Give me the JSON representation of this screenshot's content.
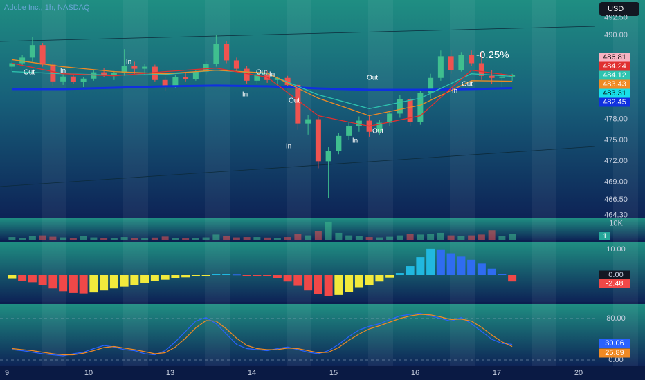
{
  "header": {
    "currency": "USD"
  },
  "chart_data": [
    {
      "type": "candlestick",
      "title": "Adobe Inc., 1h, NASDAQ",
      "xticks": [
        9,
        10,
        13,
        14,
        15,
        16,
        17,
        20
      ],
      "ylim": [
        463.94,
        495.03
      ],
      "yticks": [
        492.5,
        490.0,
        478.0,
        475.0,
        472.0,
        469.0,
        466.5,
        464.3
      ],
      "ytick_labels": [
        "492.50",
        "490.00",
        "478.00",
        "475.00",
        "472.00",
        "469.00",
        "466.50",
        "464.30"
      ],
      "up_color": "#3fbf8f",
      "down_color": "#ef5350",
      "candles": {
        "open": [
          485.5,
          486.0,
          486.8,
          488.6,
          485.8,
          483.4,
          484.1,
          483.3,
          483.8,
          484.7,
          484.3,
          484.6,
          485.6,
          485.2,
          485.5,
          483.6,
          482.8,
          484.0,
          483.7,
          484.8,
          485.9,
          488.8,
          486.4,
          485.2,
          483.5,
          484.4,
          483.6,
          483.9,
          482.9,
          477.4,
          478.0,
          472.0,
          473.5,
          475.6,
          477.0,
          477.8,
          476.2,
          477.5,
          478.8,
          480.9,
          477.6,
          481.8,
          483.9,
          487.0,
          485.0,
          487.2,
          486.0,
          484.2,
          483.9,
          484.1
        ],
        "high": [
          486.5,
          487.2,
          489.8,
          488.9,
          486.2,
          484.6,
          484.5,
          484.0,
          485.0,
          485.3,
          484.9,
          488.0,
          486.2,
          485.9,
          485.8,
          484.1,
          484.3,
          484.6,
          485.0,
          486.3,
          490.0,
          489.2,
          486.8,
          485.6,
          485.0,
          484.9,
          484.1,
          484.2,
          483.1,
          478.6,
          478.3,
          474.0,
          476.0,
          477.6,
          478.4,
          478.5,
          477.9,
          479.2,
          481.5,
          481.2,
          482.2,
          484.5,
          487.8,
          487.9,
          487.6,
          487.8,
          487.6,
          485.0,
          484.6,
          484.5
        ],
        "low": [
          484.8,
          485.6,
          486.2,
          485.5,
          482.8,
          482.9,
          483.0,
          482.6,
          483.5,
          484.0,
          483.6,
          484.2,
          484.5,
          484.3,
          483.4,
          482.0,
          482.5,
          483.4,
          483.5,
          484.4,
          485.5,
          486.0,
          484.9,
          483.1,
          483.0,
          483.2,
          482.8,
          482.5,
          476.5,
          475.8,
          471.0,
          466.7,
          473.0,
          475.0,
          476.2,
          475.5,
          475.8,
          477.0,
          478.2,
          477.0,
          477.2,
          481.0,
          483.5,
          484.5,
          484.8,
          485.6,
          483.6,
          483.0,
          482.6,
          483.5
        ],
        "close": [
          486.0,
          486.8,
          488.6,
          485.8,
          483.4,
          484.1,
          483.3,
          483.8,
          484.7,
          484.3,
          484.6,
          485.6,
          485.2,
          485.5,
          483.6,
          482.8,
          484.0,
          483.7,
          484.8,
          485.9,
          488.8,
          486.4,
          485.2,
          483.5,
          484.4,
          483.6,
          483.9,
          482.9,
          477.4,
          478.0,
          472.0,
          473.5,
          475.6,
          477.0,
          477.8,
          476.2,
          477.5,
          478.8,
          480.9,
          477.6,
          481.8,
          483.9,
          487.0,
          485.0,
          487.2,
          486.0,
          484.2,
          483.9,
          484.1,
          484.3
        ]
      },
      "lines": [
        {
          "color": "#1030e0",
          "x": [
            0,
            5,
            10,
            15,
            20,
            25,
            30,
            35,
            40,
            45,
            49
          ],
          "values": [
            482.3,
            482.3,
            482.5,
            482.7,
            482.8,
            482.7,
            482.4,
            482.2,
            482.2,
            482.3,
            482.45
          ]
        },
        {
          "color": "#2ec4b0",
          "x": [
            0,
            5,
            10,
            15,
            20,
            25,
            30,
            35,
            40,
            45,
            49
          ],
          "values": [
            484.8,
            484.5,
            484.3,
            484.4,
            485.0,
            484.5,
            481.5,
            479.5,
            481.0,
            484.5,
            484.12
          ]
        },
        {
          "color": "#f08a24",
          "x": [
            0,
            5,
            10,
            15,
            20,
            25,
            30,
            35,
            40,
            45,
            49
          ],
          "values": [
            486.5,
            485.5,
            484.8,
            484.5,
            485.0,
            484.6,
            481.0,
            478.5,
            480.0,
            483.5,
            483.43
          ]
        },
        {
          "color": "#e03030",
          "x": [
            0,
            5,
            10,
            15,
            20,
            25,
            30,
            35,
            40,
            45,
            49
          ],
          "values": [
            486.0,
            484.5,
            484.2,
            484.8,
            485.3,
            484.0,
            478.5,
            477.0,
            478.5,
            485.0,
            484.24
          ]
        }
      ],
      "badges": [
        {
          "value": 486.81,
          "color": "#f7b3c2"
        },
        {
          "value": 483.31,
          "color": "#18e0e8"
        }
      ],
      "change": "-0.25%",
      "signals": [
        "Out",
        "In",
        "In",
        "In",
        "Out",
        "In",
        "Out",
        "In",
        "In",
        "Out",
        "Out",
        "Out",
        "In"
      ]
    },
    {
      "type": "bar",
      "ylim": [
        0,
        13000
      ],
      "yticks": [
        {
          "value": 10000,
          "label": "10K"
        }
      ],
      "badge": "1",
      "values": [
        2000,
        1500,
        2500,
        3000,
        2200,
        1800,
        1500,
        2600,
        1800,
        1400,
        1300,
        2000,
        1500,
        1200,
        1700,
        2300,
        1600,
        1200,
        1400,
        1800,
        3500,
        2500,
        1800,
        2000,
        2000,
        1700,
        1500,
        2000,
        4000,
        3000,
        5500,
        11000,
        4500,
        3000,
        2500,
        2000,
        1800,
        2200,
        3000,
        4000,
        3500,
        4000,
        4500,
        3000,
        2800,
        3000,
        3500,
        6000,
        2500,
        4000
      ]
    },
    {
      "type": "histogram",
      "ylim": [
        -10.54,
        12.97
      ],
      "yticks": [
        {
          "value": 10,
          "label": "10.00"
        },
        {
          "value": 0,
          "label": "0.00"
        }
      ],
      "colors": {
        "pos_up": "#21b8e0",
        "pos_down": "#2f6cf0",
        "neg_down": "#f04848",
        "neg_up": "#f2ea3c"
      },
      "values": [
        -1.5,
        -2.2,
        -2.8,
        -4.0,
        -5.2,
        -6.3,
        -7.0,
        -7.2,
        -6.8,
        -6.0,
        -5.2,
        -4.5,
        -3.8,
        -3.0,
        -2.4,
        -1.8,
        -1.3,
        -0.9,
        -0.5,
        -0.2,
        0.3,
        0.5,
        0.2,
        -0.1,
        -0.3,
        -0.5,
        -1.2,
        -2.5,
        -4.2,
        -6.0,
        -7.5,
        -8.2,
        -7.8,
        -6.5,
        -5.0,
        -3.8,
        -2.5,
        -1.0,
        0.8,
        3.5,
        7.0,
        10.3,
        9.8,
        8.5,
        7.2,
        6.0,
        4.5,
        2.5,
        0.3,
        -2.48
      ]
    },
    {
      "type": "line",
      "ylim": [
        -12,
        108
      ],
      "yticks": [
        {
          "value": 80,
          "label": "80.00"
        },
        {
          "value": 0,
          "label": "0.00"
        }
      ],
      "grid": true,
      "series": [
        {
          "color": "#2962ff",
          "values": [
            20,
            18,
            15,
            12,
            10,
            8,
            12,
            15,
            22,
            28,
            25,
            20,
            18,
            12,
            10,
            18,
            35,
            55,
            75,
            82,
            70,
            50,
            30,
            22,
            20,
            18,
            22,
            25,
            20,
            15,
            12,
            18,
            30,
            45,
            58,
            65,
            70,
            78,
            85,
            88,
            90,
            85,
            80,
            75,
            82,
            70,
            55,
            40,
            32,
            30.06
          ]
        },
        {
          "color": "#f08a24",
          "values": [
            22,
            20,
            18,
            15,
            12,
            10,
            10,
            13,
            18,
            24,
            26,
            23,
            20,
            16,
            12,
            14,
            25,
            42,
            62,
            76,
            75,
            60,
            42,
            28,
            22,
            20,
            20,
            23,
            22,
            18,
            14,
            15,
            24,
            38,
            50,
            60,
            66,
            73,
            80,
            85,
            88,
            87,
            83,
            78,
            79,
            75,
            63,
            48,
            35,
            25.89
          ]
        }
      ]
    }
  ]
}
